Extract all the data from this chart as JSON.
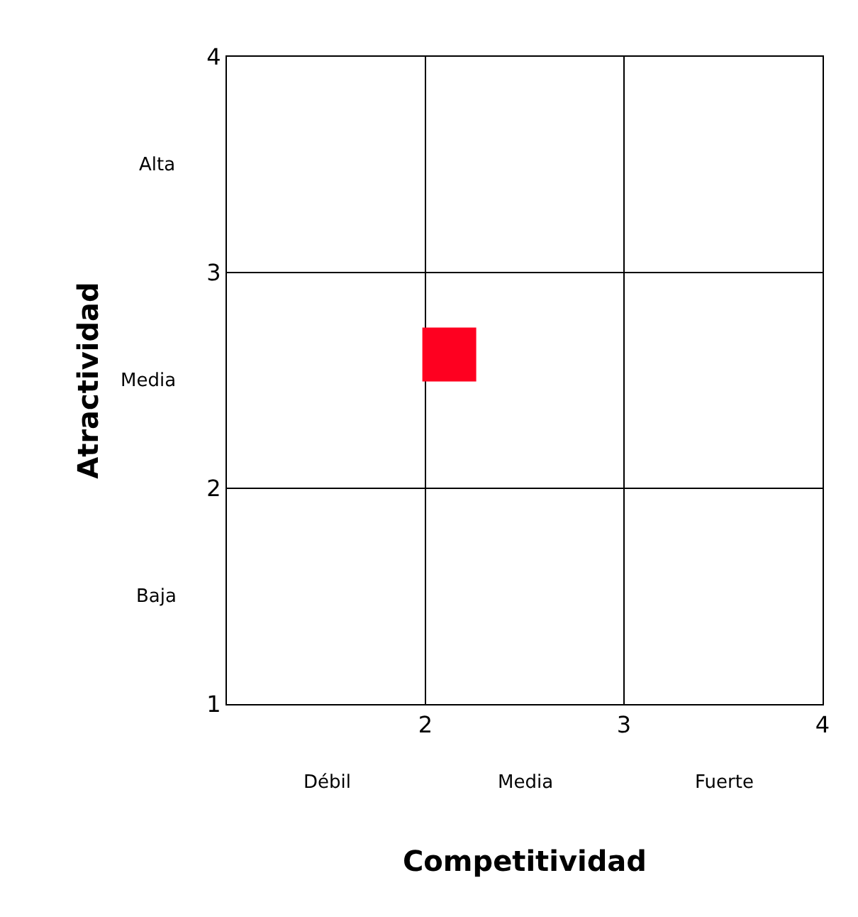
{
  "chart_data": {
    "type": "scatter",
    "xlabel": "Competitividad",
    "ylabel": "Atractividad",
    "x": [
      2.12
    ],
    "values": [
      2.62
    ],
    "color": "#fe0020",
    "marker": "square",
    "xlim": [
      1,
      4
    ],
    "ylim": [
      1,
      4
    ],
    "xticks": [
      {
        "value": 1,
        "label": null
      },
      2,
      3,
      4
    ],
    "yticks": [
      1,
      2,
      3,
      4
    ],
    "grid": true,
    "annotations": [
      "Alta",
      "Media",
      "Baja",
      "Débil",
      "Media",
      "Fuerte"
    ]
  }
}
